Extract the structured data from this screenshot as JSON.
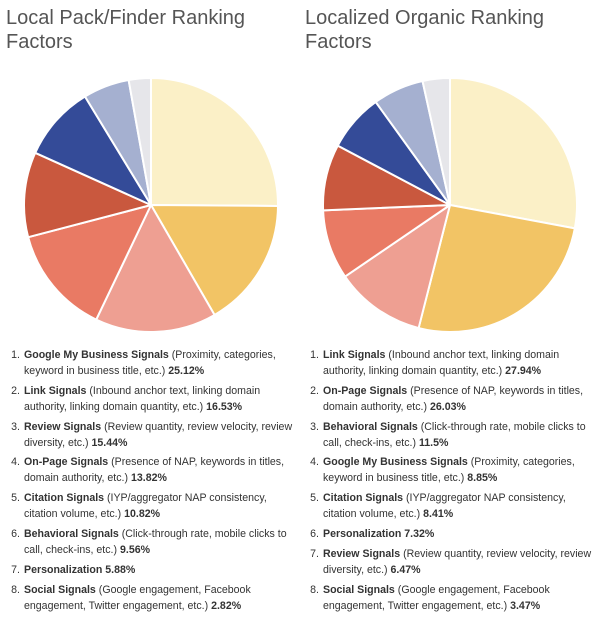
{
  "chart_data": [
    {
      "type": "pie",
      "title": "Local Pack/Finder Ranking Factors",
      "slices": [
        {
          "rank": "1.",
          "name": "Google My Business Signals",
          "detail": "(Proximity, categories, keyword in business title, etc.)",
          "label": "25.12%",
          "value": 25.12,
          "color": "#fbf0c7"
        },
        {
          "rank": "2.",
          "name": "Link Signals",
          "detail": "(Inbound anchor text, linking domain authority, linking domain quantity, etc.)",
          "label": "16.53%",
          "value": 16.53,
          "color": "#f2c465"
        },
        {
          "rank": "3.",
          "name": "Review Signals",
          "detail": "(Review quantity, review velocity, review diversity, etc.)",
          "label": "15.44%",
          "value": 15.44,
          "color": "#ee9f92"
        },
        {
          "rank": "4.",
          "name": "On-Page Signals",
          "detail": "(Presence of NAP, keywords in titles, domain authority, etc.)",
          "label": "13.82%",
          "value": 13.82,
          "color": "#e97a64"
        },
        {
          "rank": "5.",
          "name": "Citation Signals",
          "detail": "(IYP/aggregator NAP consistency, citation volume, etc.)",
          "label": "10.82%",
          "value": 10.82,
          "color": "#c9583e"
        },
        {
          "rank": "6.",
          "name": "Behavioral Signals",
          "detail": "(Click-through rate, mobile clicks to call, check-ins, etc.)",
          "label": "9.56%",
          "value": 9.56,
          "color": "#344b98"
        },
        {
          "rank": "7.",
          "name": "Personalization",
          "detail": "",
          "label": "5.88%",
          "value": 5.88,
          "color": "#a5b0d0"
        },
        {
          "rank": "8.",
          "name": "Social Signals",
          "detail": "(Google engagement, Facebook engagement, Twitter engagement, etc.)",
          "label": "2.82%",
          "value": 2.82,
          "color": "#e6e6ea"
        }
      ]
    },
    {
      "type": "pie",
      "title": "Localized Organic Ranking Factors",
      "slices": [
        {
          "rank": "1.",
          "name": "Link Signals",
          "detail": "(Inbound anchor text, linking domain authority, linking domain quantity, etc.)",
          "label": "27.94%",
          "value": 27.94,
          "color": "#fbf0c7"
        },
        {
          "rank": "2.",
          "name": "On-Page Signals",
          "detail": "(Presence of NAP, keywords in titles, domain authority, etc.)",
          "label": "26.03%",
          "value": 26.03,
          "color": "#f2c465"
        },
        {
          "rank": "3.",
          "name": "Behavioral Signals",
          "detail": "(Click-through rate, mobile clicks to call, check-ins, etc.)",
          "label": "11.5%",
          "value": 11.5,
          "color": "#ee9f92"
        },
        {
          "rank": "4.",
          "name": "Google My Business Signals",
          "detail": "(Proximity, categories, keyword in business title, etc.)",
          "label": "8.85%",
          "value": 8.85,
          "color": "#e97a64"
        },
        {
          "rank": "5.",
          "name": "Citation Signals",
          "detail": "(IYP/aggregator NAP consistency, citation volume, etc.)",
          "label": "8.41%",
          "value": 8.41,
          "color": "#c9583e"
        },
        {
          "rank": "6.",
          "name": "Personalization",
          "detail": "",
          "label": "7.32%",
          "value": 7.32,
          "color": "#344b98"
        },
        {
          "rank": "7.",
          "name": "Review Signals",
          "detail": "(Review quantity, review velocity, review diversity, etc.)",
          "label": "6.47%",
          "value": 6.47,
          "color": "#a5b0d0"
        },
        {
          "rank": "8.",
          "name": "Social Signals",
          "detail": "(Google engagement, Facebook engagement, Twitter engagement, etc.)",
          "label": "3.47%",
          "value": 3.47,
          "color": "#e6e6ea"
        }
      ]
    }
  ]
}
